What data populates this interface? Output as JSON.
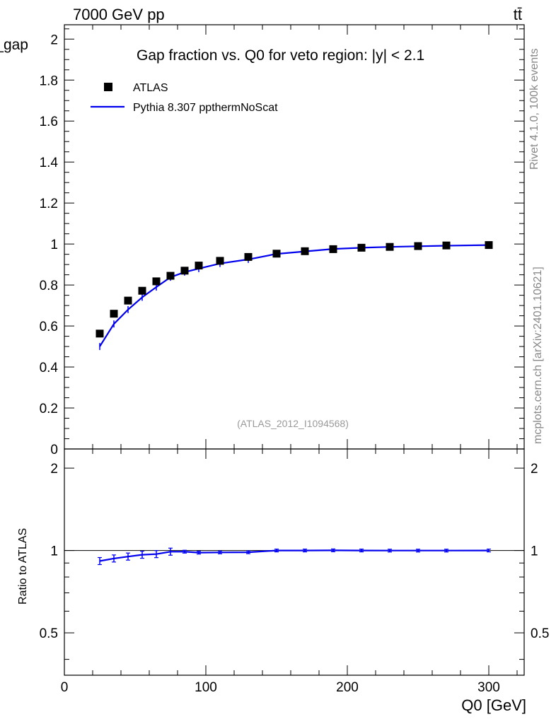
{
  "header": {
    "energy_label": "7000 GeV pp",
    "process_label": "tt̄"
  },
  "side_text": {
    "rivet": "Rivet 4.1.0,  100k events",
    "mcplots": "mcplots.cern.ch [arXiv:2401.10621]"
  },
  "chart_data": {
    "type": "scatter",
    "title": "Gap fraction vs. Q0 for veto region: |y| < 2.1",
    "analysis_tag": "(ATLAS_2012_I1094568)",
    "xlabel": "Q0 [GeV]",
    "ylabel": "f_gap",
    "ratio_ylabel": "Ratio to ATLAS",
    "xlim": [
      0,
      325
    ],
    "ylim": [
      0,
      2.07
    ],
    "ratio_ylim": [
      0.35,
      2.35
    ],
    "legend_position": "top-left",
    "x_ticks": [
      "0",
      "100",
      "200",
      "300"
    ],
    "y_ticks": [
      "0",
      "0.2",
      "0.4",
      "0.6",
      "0.8",
      "1",
      "1.2",
      "1.4",
      "1.6",
      "1.8",
      "2"
    ],
    "ratio_ticks": [
      "0.5",
      "1",
      "2"
    ],
    "series": [
      {
        "name": "ATLAS",
        "marker": "square",
        "color": "#000000",
        "x": [
          25,
          35,
          45,
          55,
          65,
          75,
          85,
          95,
          110,
          130,
          150,
          170,
          190,
          210,
          230,
          250,
          270,
          300
        ],
        "y": [
          0.563,
          0.66,
          0.724,
          0.772,
          0.818,
          0.845,
          0.87,
          0.895,
          0.918,
          0.937,
          0.953,
          0.965,
          0.975,
          0.982,
          0.986,
          0.99,
          0.993,
          0.995
        ]
      },
      {
        "name": "Pythia 8.307 ppthermNoScat",
        "marker": "line",
        "color": "#0000ee",
        "x": [
          25,
          35,
          45,
          55,
          65,
          75,
          85,
          95,
          110,
          130,
          150,
          170,
          190,
          210,
          230,
          250,
          270,
          300
        ],
        "y": [
          0.5,
          0.61,
          0.68,
          0.74,
          0.79,
          0.838,
          0.863,
          0.88,
          0.905,
          0.925,
          0.952,
          0.964,
          0.976,
          0.982,
          0.986,
          0.989,
          0.992,
          0.995
        ],
        "ratio": [
          0.915,
          0.935,
          0.95,
          0.965,
          0.97,
          0.99,
          0.99,
          0.982,
          0.984,
          0.985,
          1.0,
          1.0,
          1.001,
          1.0,
          0.999,
          0.999,
          0.999,
          1.0
        ]
      }
    ]
  }
}
